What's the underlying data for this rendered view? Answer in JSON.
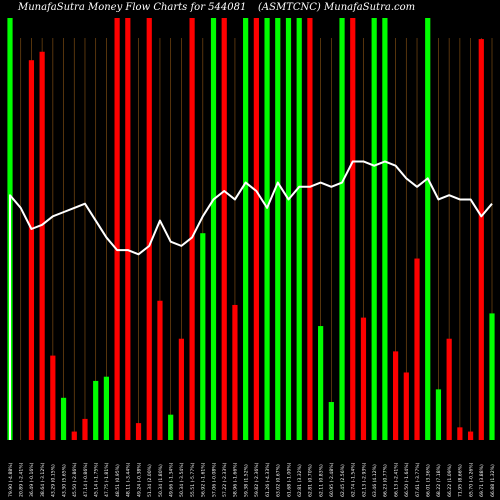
{
  "header": {
    "left": "MunafaSutra  Money Flow  Charts for 544081",
    "right": "(ASMTCNC) MunafaSutra.com"
  },
  "chart_data": {
    "type": "bar",
    "title": "MunafaSutra  Money Flow  Charts for 544081 (ASMTCNC) MunafaSutra.com",
    "ylim": [
      0,
      100
    ],
    "grid": "vertical",
    "categories": [
      "79.90 (-4.88%)",
      "20.89 (-2.41%)",
      "36.49 (-0.16%)",
      "38.64 (-3.12%)",
      "43.29 (0.15%)",
      "43.30 (5.65%)",
      "45.50 (-2.86%)",
      "47.14 (-0.86%)",
      "45.14 (-1.75%)",
      "47.75 (-1.81%)",
      "48.51 (0.95%)",
      "48.11 (-3.44%)",
      "49.24 (-0.38%)",
      "51.34 (2.00%)",
      "50.34 (1.80%)",
      "49.66 (-1.34%)",
      "50.34 (-3.54%)",
      "55.51 (-5.77%)",
      "56.92 (-1.61%)",
      "57.06 (-0.08%)",
      "57.22 (-2.33%)",
      "58.96 (-1.66%)",
      "59.38 (1.52%)",
      "59.82 (-2.36%)",
      "61.26 (-4.33%)",
      "63.02 (0.67%)",
      "61.68 (-1.00%)",
      "62.81 (3.32%)",
      "62.81 (0.70%)",
      "62.11 (0.83%)",
      "60.95 (-2.48%)",
      "62.45 (2.56%)",
      "62.74 (-1.54%)",
      "62.13 (-2.93%)",
      "63.46 (4.12%)",
      "66.23 (0.77%)",
      "66.13 (-2.41%)",
      "66.50 (-1.64%)",
      "67.61 (-3.77%)",
      "66.01 (3.36%)",
      "68.22 (7.18%)",
      "66.22 (1.09%)",
      "71.95 (8.66%)",
      "65.70 (-0.26%)",
      "69.71 (3.88%)",
      "66.88 (1.32%)"
    ],
    "series": [
      {
        "values": [
          100,
          0,
          90,
          92,
          20,
          10,
          2,
          5,
          14,
          15,
          100,
          100,
          4,
          100,
          33,
          6,
          24,
          100,
          49,
          100,
          100,
          32,
          100,
          100,
          100,
          100,
          100,
          100,
          100,
          27,
          9,
          100,
          100,
          29,
          100,
          100,
          21,
          16,
          43,
          100,
          12,
          24,
          3,
          2,
          95,
          30
        ],
        "colors": [
          "#00ff00",
          "#00ff00",
          "#ff0000",
          "#ff0000",
          "#ff0000",
          "#00ff00",
          "#ff0000",
          "#ff0000",
          "#00ff00",
          "#00ff00",
          "#ff0000",
          "#ff0000",
          "#ff0000",
          "#ff0000",
          "#ff0000",
          "#00ff00",
          "#ff0000",
          "#ff0000",
          "#00ff00",
          "#00ff00",
          "#ff0000",
          "#ff0000",
          "#00ff00",
          "#ff0000",
          "#00ff00",
          "#00ff00",
          "#00ff00",
          "#00ff00",
          "#ff0000",
          "#00ff00",
          "#00ff00",
          "#00ff00",
          "#ff0000",
          "#ff0000",
          "#00ff00",
          "#00ff00",
          "#ff0000",
          "#ff0000",
          "#ff0000",
          "#00ff00",
          "#00ff00",
          "#ff0000",
          "#ff0000",
          "#ff0000",
          "#ff0000",
          "#00ff00"
        ]
      }
    ],
    "line": {
      "color": "#ffffff",
      "values": [
        58,
        55,
        50,
        51,
        53,
        54,
        55,
        56,
        52,
        48,
        45,
        45,
        44,
        46,
        52,
        47,
        46,
        48,
        53,
        57,
        59,
        57,
        61,
        59,
        55,
        61,
        57,
        60,
        60,
        61,
        60,
        61,
        66,
        66,
        65,
        66,
        65,
        62,
        60,
        62,
        57,
        58,
        57,
        57,
        53,
        56
      ]
    }
  }
}
